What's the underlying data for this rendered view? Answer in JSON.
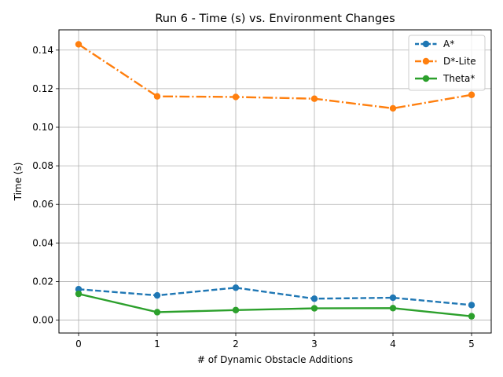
{
  "chart_data": {
    "type": "line",
    "title": "Run 6 - Time (s) vs. Environment Changes",
    "xlabel": "# of Dynamic Obstacle Additions",
    "ylabel": "Time (s)",
    "x": [
      0,
      1,
      2,
      3,
      4,
      5
    ],
    "xlim": [
      -0.25,
      5.25
    ],
    "ylim": [
      -0.0067,
      0.1505
    ],
    "xticks": [
      0,
      1,
      2,
      3,
      4,
      5
    ],
    "yticks": [
      0.0,
      0.02,
      0.04,
      0.06,
      0.08,
      0.1,
      0.12,
      0.14
    ],
    "ytick_labels": [
      "0.00",
      "0.02",
      "0.04",
      "0.06",
      "0.08",
      "0.10",
      "0.12",
      "0.14"
    ],
    "grid": true,
    "legend_position": "top-right",
    "series": [
      {
        "name": "A*",
        "color": "#1f77b4",
        "dash": "dashed",
        "values": [
          0.016,
          0.0128,
          0.0168,
          0.0111,
          0.0116,
          0.0078
        ]
      },
      {
        "name": "D*-Lite",
        "color": "#ff7f0e",
        "dash": "dashdot",
        "values": [
          0.143,
          0.116,
          0.1157,
          0.1148,
          0.1098,
          0.1168
        ]
      },
      {
        "name": "Theta*",
        "color": "#2ca02c",
        "dash": "solid",
        "values": [
          0.0136,
          0.0041,
          0.0052,
          0.0061,
          0.0062,
          0.002
        ]
      }
    ]
  }
}
